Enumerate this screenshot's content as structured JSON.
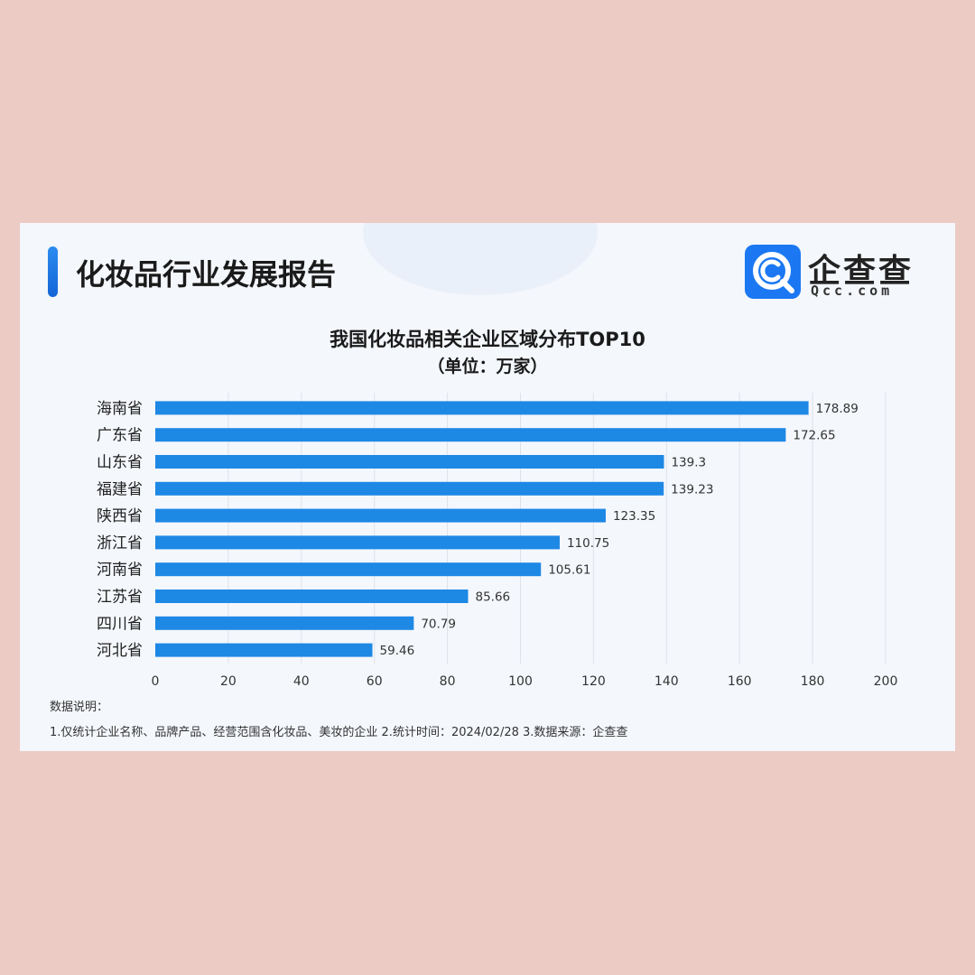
{
  "header": {
    "report_title": "化妆品行业发展报告",
    "brand_cn": "企查查",
    "brand_en": "Qcc.com"
  },
  "colors": {
    "background": "#eccbc4",
    "card": "#f4f7fc",
    "bar": "#1e88e5",
    "accent": "#1b78f2"
  },
  "icons": {
    "logo": "qcc-magnifier-logo-icon"
  },
  "chart_data": {
    "type": "bar",
    "orientation": "horizontal",
    "title": "我国化妆品相关企业区域分布TOP10",
    "subtitle": "（单位：万家）",
    "categories": [
      "海南省",
      "广东省",
      "山东省",
      "福建省",
      "陕西省",
      "浙江省",
      "河南省",
      "江苏省",
      "四川省",
      "河北省"
    ],
    "values": [
      178.89,
      172.65,
      139.3,
      139.23,
      123.35,
      110.75,
      105.61,
      85.66,
      70.79,
      59.46
    ],
    "value_labels": [
      "178.89",
      "172.65",
      "139.3",
      "139.23",
      "123.35",
      "110.75",
      "105.61",
      "85.66",
      "70.79",
      "59.46"
    ],
    "xlim": [
      0,
      200
    ],
    "xticks": [
      0,
      20,
      40,
      60,
      80,
      100,
      120,
      140,
      160,
      180,
      200
    ],
    "grid": "vertical",
    "legend": "none"
  },
  "notes": {
    "title": "数据说明：",
    "text": "1.仅统计企业名称、品牌产品、经营范围含化妆品、美妆的企业   2.统计时间：2024/02/28   3.数据来源：企查查"
  }
}
